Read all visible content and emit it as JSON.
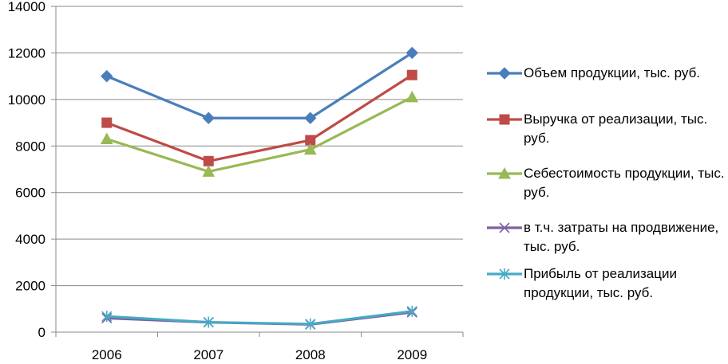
{
  "chart_data": {
    "type": "line",
    "categories": [
      "2006",
      "2007",
      "2008",
      "2009"
    ],
    "ylim": [
      0,
      14000
    ],
    "yticks": [
      0,
      2000,
      4000,
      6000,
      8000,
      10000,
      12000,
      14000
    ],
    "grid": true,
    "legend_position": "right",
    "series": [
      {
        "name": "Объем продукции, тыс. руб.",
        "values": [
          11000,
          9200,
          9200,
          12000
        ],
        "color": "#4a7ebb",
        "marker": "diamond"
      },
      {
        "name": "Выручка от реализации, тыс. руб.",
        "values": [
          9000,
          7350,
          8250,
          11050
        ],
        "color": "#be4b48",
        "marker": "square"
      },
      {
        "name": "Себестоимость продукции, тыс. руб.",
        "values": [
          8300,
          6900,
          7850,
          10100
        ],
        "color": "#98b954",
        "marker": "triangle"
      },
      {
        "name": "в т.ч. затраты на продвижение, тыс. руб.",
        "values": [
          600,
          420,
          330,
          850
        ],
        "color": "#7d60a0",
        "marker": "x"
      },
      {
        "name": "Прибыль от реализации продукции, тыс. руб.",
        "values": [
          680,
          430,
          350,
          900
        ],
        "color": "#46aac5",
        "marker": "star"
      }
    ]
  }
}
